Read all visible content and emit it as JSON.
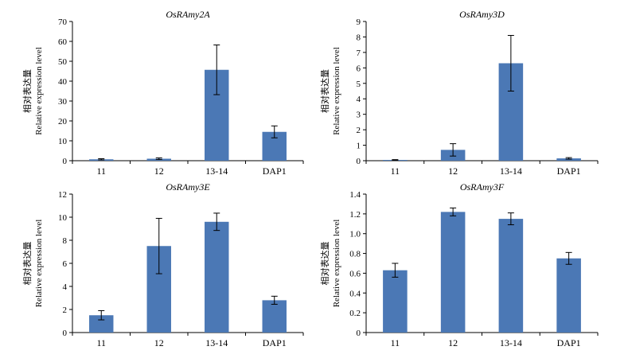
{
  "chart_data": [
    {
      "type": "bar",
      "title": "OsRAmy2A",
      "ylabel_cn": "相对表达量",
      "ylabel_en": "Relative expression level",
      "categories": [
        "11",
        "12",
        "13-14",
        "DAP1"
      ],
      "values": [
        0.7,
        1.0,
        45.7,
        14.5
      ],
      "errors": [
        0.3,
        0.4,
        12.5,
        3.0
      ],
      "ylim": [
        0,
        70
      ],
      "yticks": [
        "0",
        "10",
        "20",
        "30",
        "40",
        "50",
        "60",
        "70"
      ],
      "bar_color": "#4b78b5",
      "grid": false
    },
    {
      "type": "bar",
      "title": "OsRAmy3D",
      "ylabel_cn": "相对表达量",
      "ylabel_en": "Relative expression level",
      "categories": [
        "11",
        "12",
        "13-14",
        "DAP1"
      ],
      "values": [
        0.05,
        0.7,
        6.3,
        0.15
      ],
      "errors": [
        0.02,
        0.4,
        1.8,
        0.05
      ],
      "ylim": [
        0,
        9
      ],
      "yticks": [
        "0",
        "1",
        "2",
        "3",
        "4",
        "5",
        "6",
        "7",
        "8",
        "9"
      ],
      "bar_color": "#4b78b5",
      "grid": false
    },
    {
      "type": "bar",
      "title": "OsRAmy3E",
      "ylabel_cn": "相对表达量",
      "ylabel_en": "Relative expression level",
      "categories": [
        "11",
        "12",
        "13-14",
        "DAP1"
      ],
      "values": [
        1.5,
        7.5,
        9.6,
        2.8
      ],
      "errors": [
        0.4,
        2.4,
        0.75,
        0.35
      ],
      "ylim": [
        0,
        12
      ],
      "yticks": [
        "0",
        "2",
        "4",
        "6",
        "8",
        "10",
        "12"
      ],
      "bar_color": "#4b78b5",
      "grid": false
    },
    {
      "type": "bar",
      "title": "OsRAmy3F",
      "ylabel_cn": "相对表达量",
      "ylabel_en": "Relative expression level",
      "categories": [
        "11",
        "12",
        "13-14",
        "DAP1"
      ],
      "values": [
        0.63,
        1.22,
        1.15,
        0.75
      ],
      "errors": [
        0.07,
        0.04,
        0.06,
        0.06
      ],
      "ylim": [
        0,
        1.4
      ],
      "yticks": [
        "0",
        "0.2",
        "0.4",
        "0.6",
        "0.8",
        "1.0",
        "1.2",
        "1.4"
      ],
      "bar_color": "#4b78b5",
      "grid": false
    }
  ]
}
